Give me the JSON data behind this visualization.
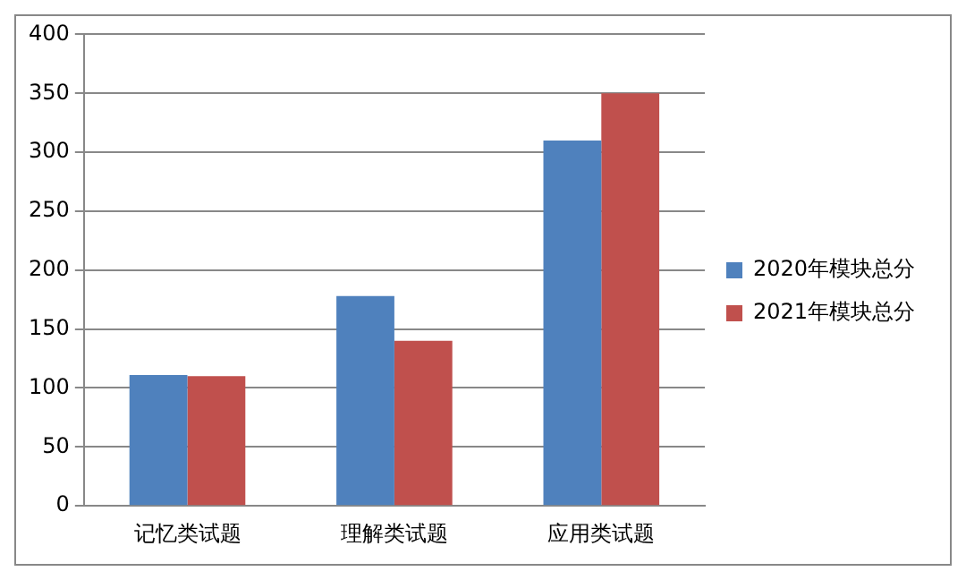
{
  "chart_data": {
    "type": "bar",
    "categories": [
      "记忆类试题",
      "理解类试题",
      "应用类试题"
    ],
    "series": [
      {
        "name": "2020年模块总分",
        "color": "#4f81bd",
        "values": [
          111,
          178,
          310
        ]
      },
      {
        "name": "2021年模块总分",
        "color": "#c0504d",
        "values": [
          110,
          140,
          350
        ]
      }
    ],
    "ylim": [
      0,
      400
    ],
    "yticks": [
      0,
      50,
      100,
      150,
      200,
      250,
      300,
      350,
      400
    ],
    "grid": "y",
    "legend": "right"
  }
}
